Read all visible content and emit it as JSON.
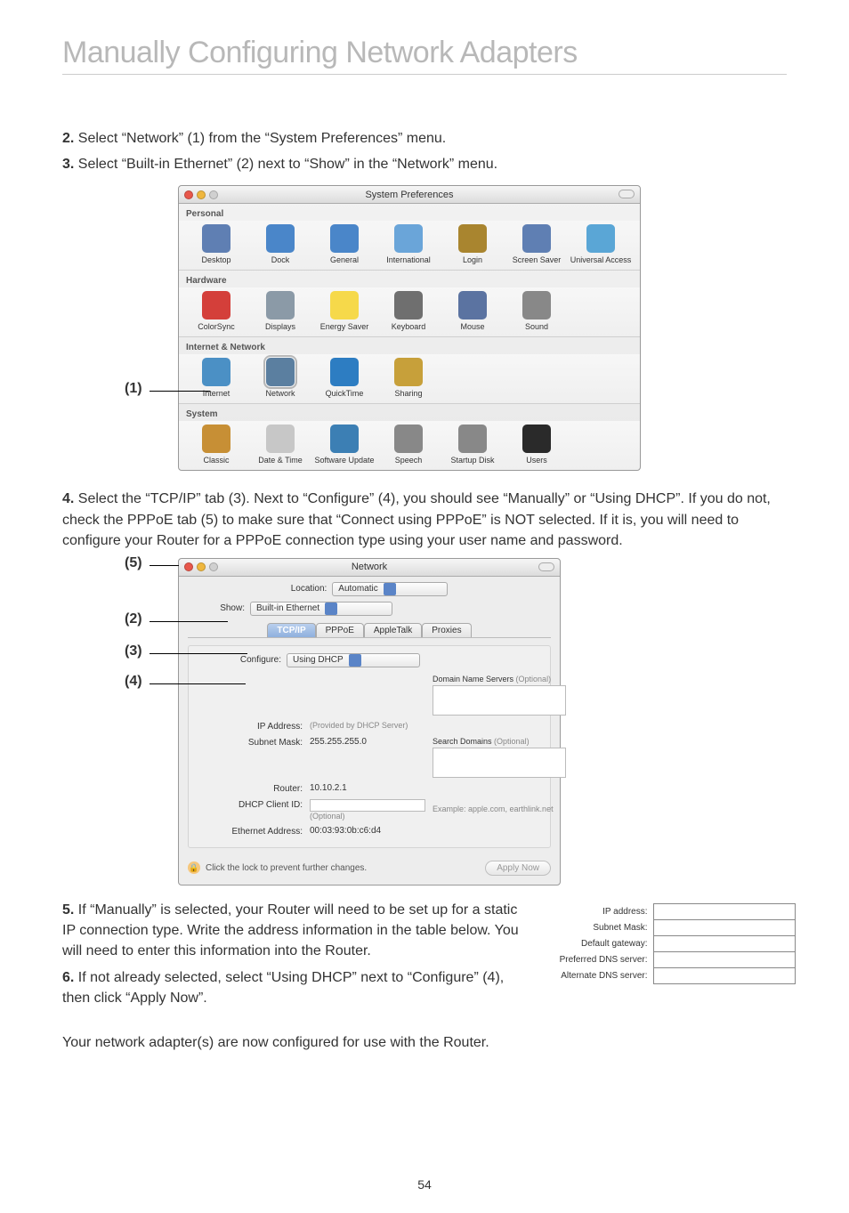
{
  "page": {
    "title": "Manually Configuring Network Adapters",
    "number": 54
  },
  "steps": {
    "s2": "Select “Network” (1) from the “System Preferences” menu.",
    "s3": "Select “Built-in Ethernet” (2) next to “Show” in the “Network” menu.",
    "s4": "Select the “TCP/IP” tab (3). Next to “Configure” (4), you should see “Manually” or “Using DHCP”. If you do not, check the PPPoE tab (5) to make sure that “Connect using PPPoE” is NOT selected. If it is, you will need to configure your Router for a PPPoE connection type using your user name and password.",
    "s5": "If “Manually” is selected, your Router will need to be set up for a static IP connection type. Write the address information in the table below. You will need to enter this information into the Router.",
    "s6": "If not already selected, select “Using DHCP” next to “Configure” (4), then click “Apply Now”.",
    "final": "Your network adapter(s) are now configured for use with the Router."
  },
  "callouts": {
    "c1": "(1)",
    "c2": "(2)",
    "c3": "(3)",
    "c4": "(4)",
    "c5": "(5)"
  },
  "sysPrefs": {
    "title": "System Preferences",
    "sections": {
      "personal": {
        "label": "Personal",
        "items": [
          "Desktop",
          "Dock",
          "General",
          "International",
          "Login",
          "Screen Saver",
          "Universal Access"
        ]
      },
      "hardware": {
        "label": "Hardware",
        "items": [
          "ColorSync",
          "Displays",
          "Energy Saver",
          "Keyboard",
          "Mouse",
          "Sound"
        ]
      },
      "internet": {
        "label": "Internet & Network",
        "items": [
          "Internet",
          "Network",
          "QuickTime",
          "Sharing"
        ]
      },
      "system": {
        "label": "System",
        "items": [
          "Classic",
          "Date & Time",
          "Software Update",
          "Speech",
          "Startup Disk",
          "Users"
        ]
      }
    },
    "iconColors": {
      "Desktop": "#5f7fb3",
      "Dock": "#4a86c9",
      "General": "#4a86c9",
      "International": "#6aa5d9",
      "Login": "#a9852f",
      "Screen Saver": "#5f7fb3",
      "Universal Access": "#5aa6d6",
      "ColorSync": "#d43f3a",
      "Displays": "#8b9aa7",
      "Energy Saver": "#f6d94a",
      "Keyboard": "#6f6f6f",
      "Mouse": "#5b73a1",
      "Sound": "#888888",
      "Internet": "#4b90c5",
      "Network": "#5b7fa0",
      "QuickTime": "#2d7dc2",
      "Sharing": "#c7a03a",
      "Classic": "#c78f35",
      "Date & Time": "#c7c7c7",
      "Software Update": "#3c7fb4",
      "Speech": "#888888",
      "Startup Disk": "#888888",
      "Users": "#2a2a2a"
    }
  },
  "network": {
    "title": "Network",
    "location_label": "Location:",
    "location_value": "Automatic",
    "show_label": "Show:",
    "show_value": "Built-in Ethernet",
    "tabs": [
      "TCP/IP",
      "PPPoE",
      "AppleTalk",
      "Proxies"
    ],
    "configure_label": "Configure:",
    "configure_value": "Using DHCP",
    "dns_header": "Domain Name Servers",
    "dns_opt": "(Optional)",
    "ip_label": "IP Address:",
    "ip_note": "(Provided by DHCP Server)",
    "subnet_label": "Subnet Mask:",
    "subnet_value": "255.255.255.0",
    "router_label": "Router:",
    "router_value": "10.10.2.1",
    "search_header": "Search Domains",
    "search_opt": "(Optional)",
    "dhcp_client_label": "DHCP Client ID:",
    "dhcp_client_opt": "(Optional)",
    "example": "Example: apple.com, earthlink.net",
    "eth_label": "Ethernet Address:",
    "eth_value": "00:03:93:0b:c6:d4",
    "lock_text": "Click the lock to prevent further changes.",
    "apply": "Apply Now"
  },
  "ipTable": {
    "rows": [
      "IP address:",
      "Subnet Mask:",
      "Default gateway:",
      "Preferred DNS server:",
      "Alternate DNS server:"
    ]
  }
}
